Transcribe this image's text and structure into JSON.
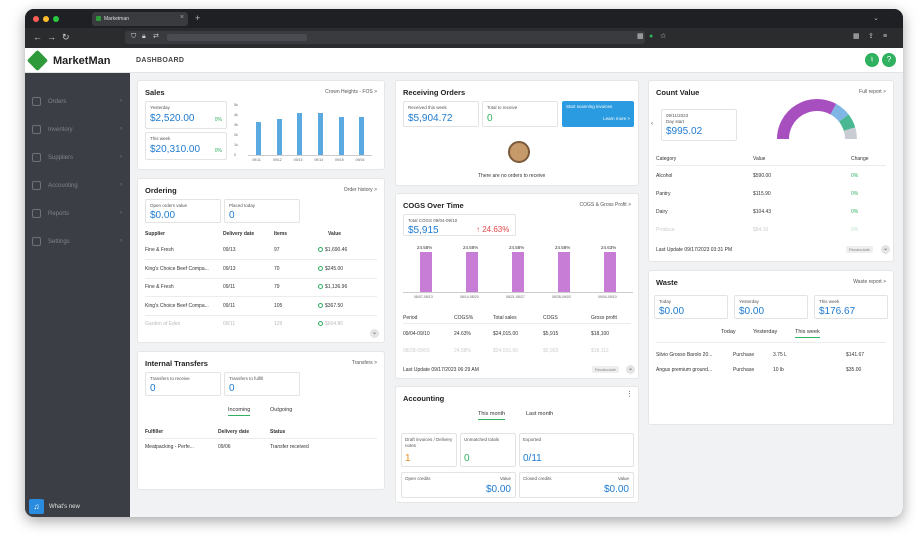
{
  "browser": {
    "tab_title": "Marketman"
  },
  "header": {
    "logo": "MarketMan",
    "page_title": "DASHBOARD"
  },
  "sidebar": {
    "items": [
      {
        "label": "Orders"
      },
      {
        "label": "Inventory"
      },
      {
        "label": "Suppliers"
      },
      {
        "label": "Accounting"
      },
      {
        "label": "Reports"
      },
      {
        "label": "Settings"
      }
    ],
    "whats_new": "What's new"
  },
  "sales": {
    "title": "Sales",
    "link": "Crown Heights - FOS >",
    "yesterday_label": "Yesterday",
    "yesterday_value": "$2,520.00",
    "yesterday_pct": "0%",
    "thisweek_label": "This week",
    "thisweek_value": "$20,310.00",
    "thisweek_pct": "0%",
    "y_ticks": [
      "5k",
      "4k",
      "3k",
      "2k",
      "1k",
      "0"
    ],
    "chart_data": {
      "type": "bar",
      "categories": [
        "09/11",
        "09/12",
        "09/13",
        "09/14",
        "09/15",
        "09/16"
      ],
      "values": [
        3300,
        3600,
        4200,
        4200,
        3800,
        3800
      ],
      "ylim": [
        0,
        5000
      ]
    }
  },
  "receiving": {
    "title": "Receiving Orders",
    "received_label": "Received this week",
    "received_value": "$5,904.72",
    "toreceive_label": "Total to receive",
    "toreceive_value": "0",
    "scan_title": "Start scanning invoices",
    "scan_link": "Learn more >",
    "empty": "There are no orders to receive"
  },
  "count_value": {
    "title": "Count Value",
    "link": "Full report >",
    "date": "09/11/2023",
    "day_label": "Day start",
    "value": "$995.02",
    "columns": [
      "Category",
      "Value",
      "Change"
    ],
    "rows": [
      {
        "category": "Alcohol",
        "value": "$590.00",
        "change": "0%"
      },
      {
        "category": "Pantry",
        "value": "$115.90",
        "change": "0%"
      },
      {
        "category": "Dairy",
        "value": "$104.43",
        "change": "0%"
      },
      {
        "category": "Produce",
        "value": "$84.10",
        "change": "0%"
      }
    ],
    "last_update": "Last Update 09/17/2023 03:31 PM",
    "badge": "Recalculate",
    "gauge_segments": [
      {
        "label": "Alcohol",
        "color": "#a84fc0",
        "value": 590.0
      },
      {
        "label": "Pantry",
        "color": "#7fb6e6",
        "value": 115.9
      },
      {
        "label": "Dairy",
        "color": "#4bb894",
        "value": 104.43
      },
      {
        "label": "Produce",
        "color": "#c9cdd3",
        "value": 84.1
      }
    ]
  },
  "ordering": {
    "title": "Ordering",
    "link": "Order history >",
    "open_label": "Open orders value",
    "open_value": "$0.00",
    "placed_label": "Placed today",
    "placed_value": "0",
    "columns": [
      "Supplier",
      "Delivery date",
      "Items",
      "Value"
    ],
    "rows": [
      {
        "supplier": "Fine & Fresh",
        "date": "09/13",
        "items": "97",
        "value": "$1,690.46"
      },
      {
        "supplier": "King's Choice Beef Compa...",
        "date": "09/13",
        "items": "70",
        "value": "$245.00"
      },
      {
        "supplier": "Fine & Fresh",
        "date": "09/11",
        "items": "79",
        "value": "$1,136.96"
      },
      {
        "supplier": "King's Choice Beef Compa...",
        "date": "09/11",
        "items": "105",
        "value": "$367.50"
      },
      {
        "supplier": "Garden of Eden",
        "date": "09/11",
        "items": "129",
        "value": "$604.80"
      }
    ]
  },
  "cogs": {
    "title": "COGS Over Time",
    "link": "COGS & Gross Profit >",
    "total_label": "Total COGS 09/04-09/10",
    "total_value": "$5,915",
    "trend": "↑ 24.63%",
    "columns": [
      "Period",
      "COGS%",
      "Total sales",
      "COGS",
      "Gross profit"
    ],
    "rows": [
      {
        "period": "09/04-09/10",
        "pct": "24.63%",
        "sales": "$24,015.00",
        "cogs": "$5,915",
        "gp": "$18,100"
      },
      {
        "period": "08/28-09/03",
        "pct": "24.58%",
        "sales": "$24,015.00",
        "cogs": "$5,903",
        "gp": "$18,112"
      }
    ],
    "last_update": "Last Update 09/17/2023 06:29 AM",
    "badge": "Recalculate",
    "chart_data": {
      "type": "bar",
      "categories": [
        "08/07-08/13",
        "08/14-08/20",
        "08/21-08/27",
        "08/28-09/03",
        "09/04-09/10"
      ],
      "values": [
        24.58,
        24.58,
        24.58,
        24.58,
        24.63
      ],
      "labels": [
        "24.58%",
        "24.58%",
        "24.58%",
        "24.58%",
        "24.63%"
      ],
      "ylim": [
        0,
        30
      ]
    }
  },
  "waste": {
    "title": "Waste",
    "link": "Waste report >",
    "today_label": "Today",
    "today_value": "$0.00",
    "yesterday_label": "Yesterday",
    "yesterday_value": "$0.00",
    "week_label": "This week",
    "week_value": "$176.67",
    "tabs": [
      "Today",
      "Yesterday",
      "This week"
    ],
    "rows": [
      {
        "item": "Silvio Grosso Barolo 20...",
        "type": "Purchase",
        "qty": "3.75 L",
        "value": "$141.67"
      },
      {
        "item": "Angus premium ground...",
        "type": "Purchase",
        "qty": "10 lb",
        "value": "$35.00"
      }
    ]
  },
  "transfers": {
    "title": "Internal Transfers",
    "link": "Transfers >",
    "receive_label": "Transfers to receive",
    "receive_value": "0",
    "fulfill_label": "Transfers to fulfill",
    "fulfill_value": "0",
    "tabs": [
      "Incoming",
      "Outgoing"
    ],
    "columns": [
      "Fulfiller",
      "Delivery date",
      "Status"
    ],
    "rows": [
      {
        "fulfiller": "Meatpacking - Perfe...",
        "date": "09/06",
        "status": "Transfer received"
      }
    ]
  },
  "accounting": {
    "title": "Accounting",
    "tabs": [
      "This month",
      "Last month"
    ],
    "drafts_label": "Draft invoices / Delivery notes",
    "drafts_value": "1",
    "unmatched_label": "Unmatched totals",
    "unmatched_value": "0",
    "exported_label": "Exported",
    "exported_value": "0/11",
    "open_credits_label": "Open credits",
    "open_value_label": "Value",
    "open_credits_value": "$0.00",
    "closed_credits_label": "Closed credits",
    "closed_value_label": "Value",
    "closed_credits_value": "$0.00"
  },
  "colors": {
    "brand": "#2e9a3a",
    "accent": "#1f7bd0",
    "sales_bar": "#5aa9e0",
    "cogs_bar": "#c77dd6"
  }
}
